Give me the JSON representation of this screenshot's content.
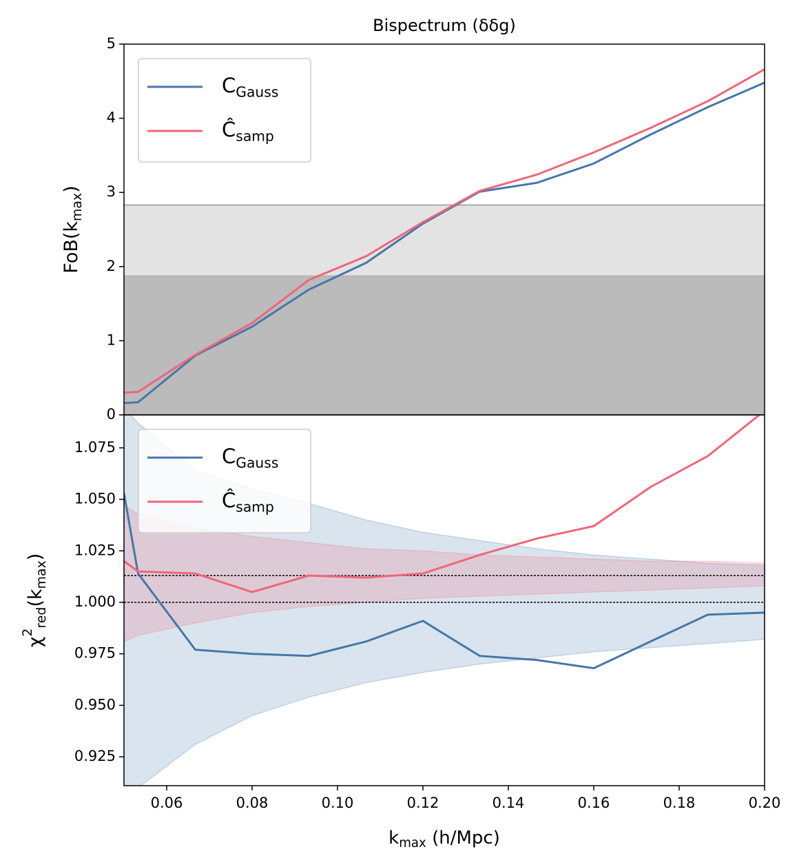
{
  "chart_data": [
    {
      "type": "line",
      "title": "Bispectrum (δδg)",
      "ylabel": "FoB(k_{max})",
      "x": [
        0.05,
        0.0533,
        0.0667,
        0.08,
        0.0933,
        0.1067,
        0.12,
        0.1333,
        0.1467,
        0.16,
        0.1733,
        0.1867,
        0.2
      ],
      "xlim": [
        0.05,
        0.2
      ],
      "ylim": [
        0,
        5
      ],
      "yticks": [
        0,
        1,
        2,
        3,
        4,
        5
      ],
      "hspans": [
        {
          "from": 0,
          "to": 1.88,
          "color": "#bbbbbb"
        },
        {
          "from": 1.88,
          "to": 2.83,
          "color": "#e3e3e3"
        }
      ],
      "series": [
        {
          "name": "C_{Gauss}",
          "color": "#4477aa",
          "values": [
            0.16,
            0.17,
            0.8,
            1.19,
            1.69,
            2.05,
            2.58,
            3.01,
            3.13,
            3.39,
            3.78,
            4.15,
            4.48
          ]
        },
        {
          "name": "Ĉ_{samp}",
          "color": "#ee6677",
          "values": [
            0.3,
            0.31,
            0.81,
            1.24,
            1.82,
            2.14,
            2.6,
            3.02,
            3.24,
            3.54,
            3.87,
            4.23,
            4.66
          ]
        }
      ],
      "legend": "upper left"
    },
    {
      "type": "line",
      "ylabel": "χ^{2}_{red}(k_{max})",
      "xlabel": "k_{max} (h/Mpc)",
      "x": [
        0.05,
        0.0533,
        0.0667,
        0.08,
        0.0933,
        0.1067,
        0.12,
        0.1333,
        0.1467,
        0.16,
        0.1733,
        0.1867,
        0.2
      ],
      "xlim": [
        0.05,
        0.2
      ],
      "xticks": [
        0.06,
        0.08,
        {
          "value": 0.1,
          "label": "0.10"
        },
        0.12,
        0.14,
        0.16,
        0.18,
        {
          "value": 0.2,
          "label": "0.20"
        }
      ],
      "ylim": [
        0.911,
        1.091
      ],
      "yticks": [
        0.925,
        {
          "value": 0.95,
          "label": "0.950"
        },
        0.975,
        {
          "value": 1.0,
          "label": "1.000"
        },
        1.025,
        {
          "value": 1.05,
          "label": "1.050"
        },
        1.075
      ],
      "hlines": [
        1.0,
        1.013
      ],
      "bands": [
        {
          "color": "#4477aa",
          "lower": [
            0.905,
            0.91,
            0.931,
            0.945,
            0.954,
            0.961,
            0.966,
            0.97,
            0.973,
            0.976,
            0.978,
            0.98,
            0.982
          ],
          "upper": [
            1.095,
            1.087,
            1.064,
            1.055,
            1.048,
            1.04,
            1.034,
            1.03,
            1.026,
            1.023,
            1.021,
            1.019,
            1.018
          ]
        },
        {
          "color": "#ee6677",
          "lower": [
            0.981,
            0.984,
            0.99,
            0.995,
            0.998,
            1.0,
            1.002,
            1.003,
            1.004,
            1.005,
            1.006,
            1.007,
            1.008
          ],
          "upper": [
            1.047,
            1.043,
            1.036,
            1.032,
            1.029,
            1.026,
            1.025,
            1.023,
            1.022,
            1.021,
            1.02,
            1.02,
            1.019
          ]
        }
      ],
      "series": [
        {
          "name": "C_{Gauss}",
          "color": "#4477aa",
          "values": [
            1.053,
            1.014,
            0.977,
            0.975,
            0.974,
            0.981,
            0.991,
            0.974,
            0.972,
            0.968,
            0.981,
            0.994,
            0.995
          ]
        },
        {
          "name": "Ĉ_{samp}",
          "color": "#ee6677",
          "values": [
            1.02,
            1.015,
            1.014,
            1.005,
            1.013,
            1.012,
            1.014,
            1.023,
            1.031,
            1.037,
            1.056,
            1.071,
            1.093
          ]
        }
      ],
      "legend": "upper left"
    }
  ]
}
